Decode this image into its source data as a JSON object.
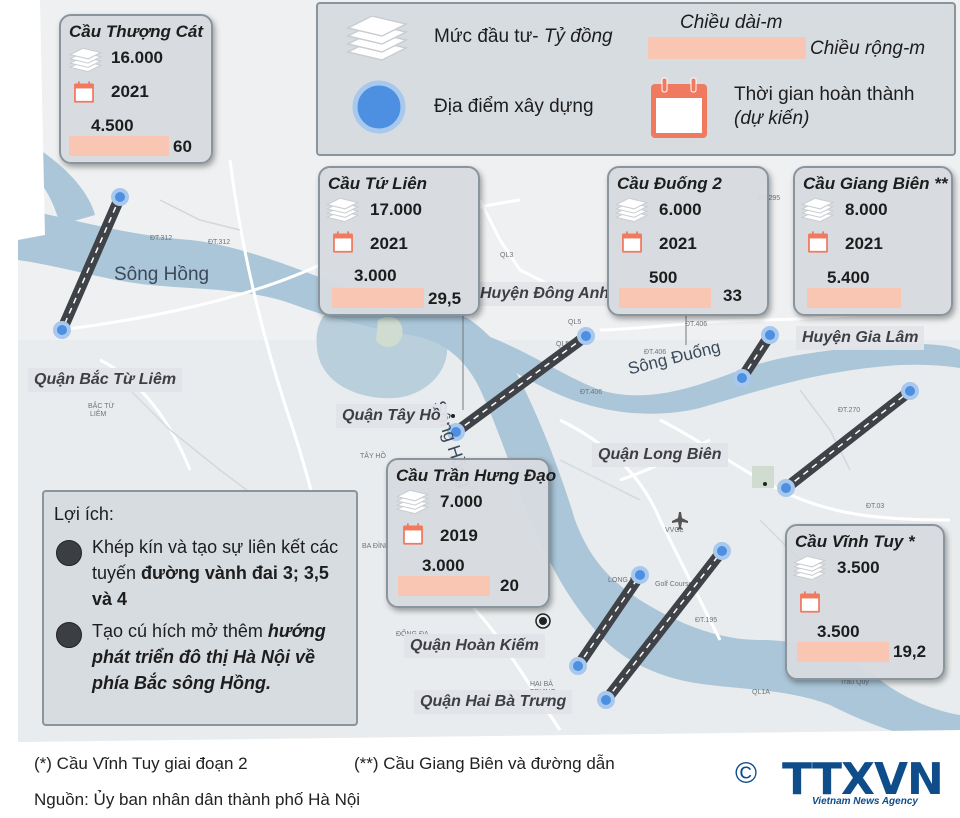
{
  "legend": {
    "investment_label": "Mức đầu tư- ",
    "investment_unit": "Tỷ đồng",
    "length_label": "Chiều dài-m",
    "width_label": "Chiều rộng-m",
    "location_label": "Địa điểm xây dựng",
    "completion_label": "Thời gian hoàn thành",
    "completion_note": "(dự kiến)"
  },
  "bridges": [
    {
      "name": "Cầu Thượng Cát",
      "investment": "16.000",
      "year": "2021",
      "length": "4.500",
      "width": "60"
    },
    {
      "name": "Cầu Tứ Liên",
      "investment": "17.000",
      "year": "2021",
      "length": "3.000",
      "width": "29,5"
    },
    {
      "name": "Cầu Đuống 2",
      "investment": "6.000",
      "year": "2021",
      "length": "500",
      "width": "33"
    },
    {
      "name": "Cầu Giang Biên **",
      "investment": "8.000",
      "year": "2021",
      "length": "5.400",
      "width": ""
    },
    {
      "name": "Cầu Trần Hưng Đạo",
      "investment": "7.000",
      "year": "2019",
      "length": "3.000",
      "width": "20"
    },
    {
      "name": "Cầu Vĩnh Tuy *",
      "investment": "3.500",
      "year": "",
      "length": "3.500",
      "width": "19,2"
    }
  ],
  "districts": {
    "bac_tu_liem": "Quận Bắc Từ Liêm",
    "tay_ho": "Quận Tây Hồ",
    "dong_anh": "Huyện Đông Anh",
    "gia_lam": "Huyện Gia Lâm",
    "long_bien": "Quận Long Biên",
    "hoan_kiem": "Quận Hoàn Kiếm",
    "hai_ba_trung": "Quận Hai Bà Trưng"
  },
  "rivers": {
    "song_hong_1": "Sông Hồng",
    "song_hong_2": "Sông Hồng",
    "song_duong": "Sông Đuống"
  },
  "benefits": {
    "heading": "Lợi ích:",
    "item1_a": "Khép kín và tạo sự liên kết các tuyến ",
    "item1_b": "đường vành đai 3; 3,5 và 4",
    "item2_a": "Tạo cú hích mở thêm ",
    "item2_b": "hướng phát triển đô thị Hà Nội về phía Bắc sông Hồng."
  },
  "footer": {
    "note1": "(*) Cầu Vĩnh Tuy giai đoạn 2",
    "note2": "(**) Cầu Giang Biên và đường dẫn",
    "source": "Nguồn: Ủy ban nhân dân thành phố Hà Nội",
    "copyright": "©",
    "logo": "TTXVN",
    "logo_sub": "Vietnam News Agency"
  },
  "colors": {
    "bar": "#f9c6b3",
    "calendar": "#f07a5f",
    "location": "#4d8fe0",
    "river": "#aac6d8",
    "logo": "#0f4d8a"
  },
  "icons": {
    "investment": "money-stack-icon",
    "completion": "calendar-icon",
    "location": "location-dot-icon",
    "airport": "airplane-icon"
  }
}
